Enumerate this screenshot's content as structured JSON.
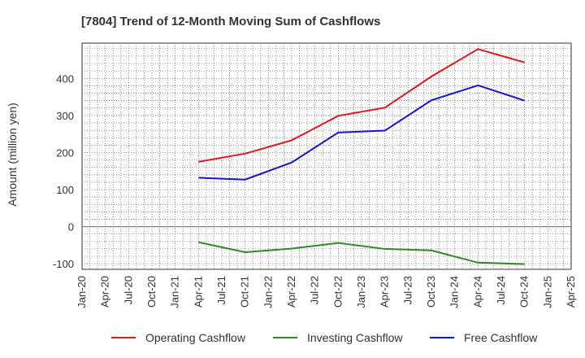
{
  "chart_data": {
    "type": "line",
    "title": "[7804]  Trend of 12-Month Moving Sum of Cashflows",
    "xlabel": "",
    "ylabel": "Amount (million yen)",
    "ylim": [
      -115,
      495
    ],
    "yticks": [
      -100,
      0,
      100,
      200,
      300,
      400
    ],
    "x_ticks": [
      "Jan-20",
      "Apr-20",
      "Jul-20",
      "Oct-20",
      "Jan-21",
      "Apr-21",
      "Jul-21",
      "Oct-21",
      "Jan-22",
      "Apr-22",
      "Jul-22",
      "Oct-22",
      "Jan-23",
      "Apr-23",
      "Jul-23",
      "Oct-23",
      "Jan-24",
      "Apr-24",
      "Jul-24",
      "Oct-24",
      "Jan-25",
      "Apr-25"
    ],
    "x": [
      "Apr-21",
      "Oct-21",
      "Apr-22",
      "Oct-22",
      "Apr-23",
      "Oct-23",
      "Apr-24",
      "Oct-24"
    ],
    "grid": true,
    "legend_position": "bottom",
    "series": [
      {
        "name": "Operating Cashflow",
        "color": "#e8141a",
        "values": [
          175,
          197,
          233,
          299,
          321,
          405,
          479,
          443
        ]
      },
      {
        "name": "Investing Cashflow",
        "color": "#2e8b22",
        "values": [
          -42,
          -69,
          -59,
          -44,
          -60,
          -64,
          -97,
          -101
        ]
      },
      {
        "name": "Free Cashflow",
        "color": "#0f17d6",
        "values": [
          132,
          127,
          173,
          254,
          259,
          341,
          381,
          340
        ]
      }
    ]
  }
}
